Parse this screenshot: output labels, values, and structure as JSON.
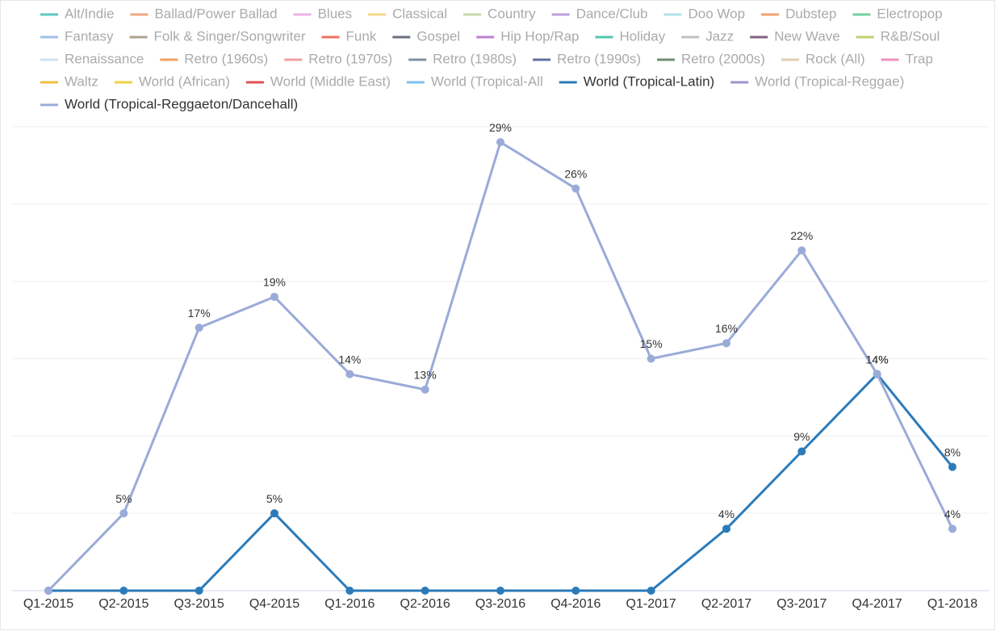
{
  "chart_data": {
    "type": "line",
    "categories": [
      "Q1-2015",
      "Q2-2015",
      "Q3-2015",
      "Q4-2015",
      "Q1-2016",
      "Q2-2016",
      "Q3-2016",
      "Q4-2016",
      "Q1-2017",
      "Q2-2017",
      "Q3-2017",
      "Q4-2017",
      "Q1-2018"
    ],
    "ylim": [
      0,
      30
    ],
    "ygrid": [
      5,
      10,
      15,
      20,
      25,
      30
    ],
    "series": [
      {
        "name": "Alt/Indie",
        "color": "#5bc8c0",
        "visible": false
      },
      {
        "name": "Ballad/Power Ballad",
        "color": "#f4a582",
        "visible": false
      },
      {
        "name": "Blues",
        "color": "#e8b4e8",
        "visible": false
      },
      {
        "name": "Classical",
        "color": "#f5d78a",
        "visible": false
      },
      {
        "name": "Country",
        "color": "#c8d6a8",
        "visible": false
      },
      {
        "name": "Dance/Club",
        "color": "#b8a0d8",
        "visible": false
      },
      {
        "name": "Doo Wop",
        "color": "#b0e0e8",
        "visible": false
      },
      {
        "name": "Dubstep",
        "color": "#f4a070",
        "visible": false
      },
      {
        "name": "Electropop",
        "color": "#70d0a0",
        "visible": false
      },
      {
        "name": "Fantasy",
        "color": "#a0c0e8",
        "visible": false
      },
      {
        "name": "Folk & Singer/Songwriter",
        "color": "#b0a090",
        "visible": false
      },
      {
        "name": "Funk",
        "color": "#f07060",
        "visible": false
      },
      {
        "name": "Gospel",
        "color": "#6a7080",
        "visible": false
      },
      {
        "name": "Hip Hop/Rap",
        "color": "#c080d0",
        "visible": false
      },
      {
        "name": "Holiday",
        "color": "#50c8b0",
        "visible": false
      },
      {
        "name": "Jazz",
        "color": "#c0c0c0",
        "visible": false
      },
      {
        "name": "New Wave",
        "color": "#806080",
        "visible": false
      },
      {
        "name": "R&B/Soul",
        "color": "#c0d070",
        "visible": false
      },
      {
        "name": "Renaissance",
        "color": "#d0e0f0",
        "visible": false
      },
      {
        "name": "Retro (1960s)",
        "color": "#f0a060",
        "visible": false
      },
      {
        "name": "Retro (1970s)",
        "color": "#f0a0a0",
        "visible": false
      },
      {
        "name": "Retro (1980s)",
        "color": "#8090a0",
        "visible": false
      },
      {
        "name": "Retro (1990s)",
        "color": "#6070a0",
        "visible": false
      },
      {
        "name": "Retro (2000s)",
        "color": "#709070",
        "visible": false
      },
      {
        "name": "Rock (All)",
        "color": "#e0d0b0",
        "visible": false
      },
      {
        "name": "Trap",
        "color": "#f090c0",
        "visible": false
      },
      {
        "name": "Waltz",
        "color": "#f0c040",
        "visible": false
      },
      {
        "name": "World (African)",
        "color": "#f0d040",
        "visible": false
      },
      {
        "name": "World (Middle East)",
        "color": "#e05050",
        "visible": false
      },
      {
        "name": "World (Tropical-All",
        "color": "#80c0e8",
        "visible": false
      },
      {
        "name": "World (Tropical-Latin)",
        "color": "#2b7bb9",
        "visible": true,
        "values": [
          0,
          0,
          0,
          5,
          0,
          0,
          0,
          0,
          0,
          4,
          9,
          14,
          8
        ],
        "value_labels": [
          null,
          null,
          null,
          "5%",
          null,
          null,
          null,
          null,
          null,
          "4%",
          "9%",
          "14%",
          "8%"
        ]
      },
      {
        "name": "World (Tropical-Reggae)",
        "color": "#a090d0",
        "visible": false
      },
      {
        "name": "World (Tropical-Reggaeton/Dancehall)",
        "color": "#9aabd8",
        "visible": true,
        "values": [
          0,
          5,
          17,
          19,
          14,
          13,
          29,
          26,
          15,
          16,
          22,
          14,
          4
        ],
        "value_labels": [
          null,
          "5%",
          "17%",
          "19%",
          "14%",
          "13%",
          "29%",
          "26%",
          "15%",
          "16%",
          "22%",
          "14%",
          "4%"
        ]
      }
    ]
  }
}
